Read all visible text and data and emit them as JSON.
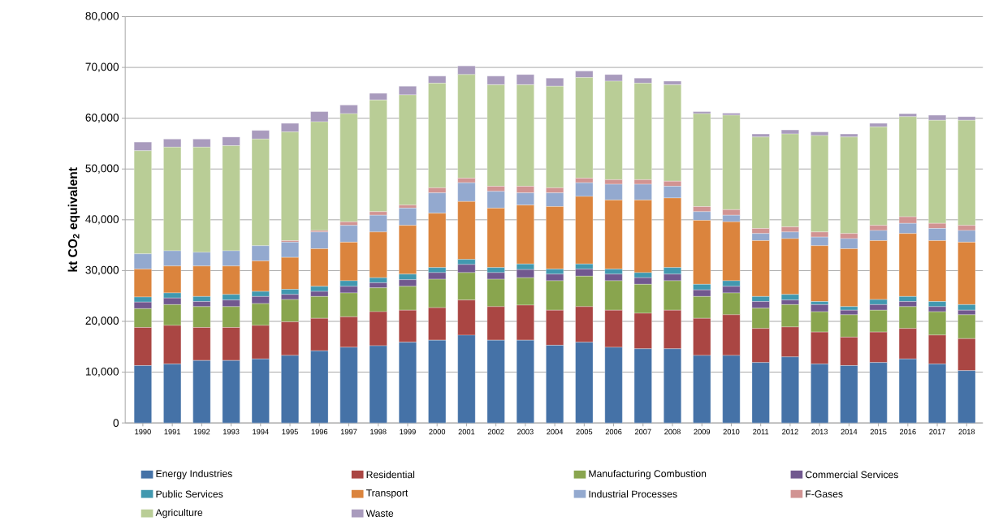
{
  "chart_data": {
    "type": "bar",
    "stacked": true,
    "ylabel": "kt CO$_{2}$ equivalent",
    "categories": [
      "1990",
      "1991",
      "1992",
      "1993",
      "1994",
      "1995",
      "1996",
      "1997",
      "1998",
      "1999",
      "2000",
      "2001",
      "2002",
      "2003",
      "2004",
      "2005",
      "2006",
      "2007",
      "2008",
      "2009",
      "2010",
      "2011",
      "2012",
      "2013",
      "2014",
      "2015",
      "2016",
      "2017",
      "2018"
    ],
    "ylim": [
      0,
      80000
    ],
    "yticks": [
      0,
      {
        "value": 10000,
        "label": "10,000"
      },
      {
        "value": 20000,
        "label": "20,000"
      },
      {
        "value": 30000,
        "label": "30,000"
      },
      {
        "value": 40000,
        "label": "40,000"
      },
      {
        "value": 50000,
        "label": "50,000"
      },
      {
        "value": 60000,
        "label": "60,000"
      },
      {
        "value": 70000,
        "label": "70,000"
      },
      {
        "value": 80000,
        "label": "80,000"
      }
    ],
    "grid": "y",
    "legend": "bottom",
    "series": [
      {
        "name": "Energy Industries",
        "color": "#4572a7",
        "values": [
          11300,
          11600,
          12300,
          12300,
          12600,
          13300,
          14200,
          14900,
          15200,
          15900,
          16300,
          17300,
          16300,
          16300,
          15300,
          15900,
          14900,
          14600,
          14600,
          13300,
          13300,
          11900,
          13000,
          11600,
          11300,
          11900,
          12600,
          11600,
          10300
        ]
      },
      {
        "name": "Residential",
        "color": "#aa4643",
        "values": [
          7500,
          7600,
          6500,
          6500,
          6600,
          6600,
          6400,
          6000,
          6700,
          6300,
          6400,
          6900,
          6600,
          6900,
          6900,
          7000,
          7300,
          7000,
          7600,
          7300,
          8000,
          6700,
          5900,
          6300,
          5600,
          6000,
          6000,
          5700,
          6300
        ]
      },
      {
        "name": "Manufacturing Combustion",
        "color": "#89a54e",
        "values": [
          3700,
          4100,
          4100,
          4100,
          4300,
          4400,
          4300,
          4700,
          4700,
          4700,
          5600,
          5400,
          5400,
          5400,
          5800,
          6000,
          5800,
          5700,
          5800,
          4300,
          4300,
          4000,
          4400,
          4000,
          4400,
          4300,
          4300,
          4600,
          4700
        ]
      },
      {
        "name": "Commercial Services",
        "color": "#71588f",
        "values": [
          1300,
          1300,
          1000,
          1300,
          1400,
          1000,
          1000,
          1300,
          1000,
          1300,
          1300,
          1600,
          1300,
          1600,
          1300,
          1400,
          1300,
          1300,
          1300,
          1300,
          1300,
          1300,
          900,
          1400,
          900,
          1100,
          1000,
          1000,
          900
        ]
      },
      {
        "name": "Public Services",
        "color": "#4198af",
        "values": [
          1000,
          1000,
          1000,
          1100,
          1000,
          1000,
          1000,
          1100,
          1000,
          1100,
          1000,
          1000,
          1000,
          1100,
          1000,
          1000,
          1000,
          1000,
          1300,
          1100,
          1100,
          1000,
          1100,
          600,
          700,
          1000,
          1000,
          1000,
          1100
        ]
      },
      {
        "name": "Transport",
        "color": "#db843d",
        "values": [
          5500,
          5300,
          6000,
          5600,
          6000,
          6300,
          7400,
          7600,
          9000,
          9600,
          10700,
          11400,
          11700,
          11600,
          12300,
          13300,
          13600,
          14300,
          13700,
          12600,
          11600,
          11000,
          11000,
          11000,
          11400,
          11600,
          12400,
          12000,
          12300
        ]
      },
      {
        "name": "Industrial Processes",
        "color": "#93a9cf",
        "values": [
          3000,
          3000,
          2700,
          3000,
          3000,
          3000,
          3300,
          3300,
          3300,
          3400,
          4000,
          3700,
          3300,
          2400,
          2700,
          2700,
          3100,
          3100,
          2300,
          1700,
          1300,
          1400,
          1300,
          1700,
          2000,
          2000,
          2000,
          2400,
          2300
        ]
      },
      {
        "name": "F-Gases",
        "color": "#d19392",
        "values": [
          0,
          0,
          0,
          0,
          0,
          300,
          300,
          700,
          700,
          600,
          1000,
          900,
          1000,
          1300,
          1000,
          900,
          900,
          900,
          1000,
          1000,
          1100,
          1000,
          1000,
          1000,
          1000,
          1000,
          1300,
          1000,
          1000
        ]
      },
      {
        "name": "Agriculture",
        "color": "#b9cd96",
        "values": [
          20300,
          20400,
          20700,
          20700,
          21000,
          21400,
          21400,
          21300,
          22000,
          21700,
          20600,
          20400,
          20000,
          20000,
          20000,
          19800,
          19400,
          19000,
          19000,
          18300,
          18600,
          18000,
          18300,
          19000,
          19000,
          19400,
          19700,
          20300,
          20700
        ]
      },
      {
        "name": "Waste",
        "color": "#a99bbd",
        "values": [
          1700,
          1600,
          1600,
          1700,
          1700,
          1700,
          2000,
          1700,
          1300,
          1700,
          1400,
          1700,
          1700,
          2000,
          1600,
          1300,
          1300,
          1000,
          700,
          400,
          400,
          600,
          800,
          700,
          600,
          700,
          600,
          1000,
          700
        ]
      }
    ]
  }
}
